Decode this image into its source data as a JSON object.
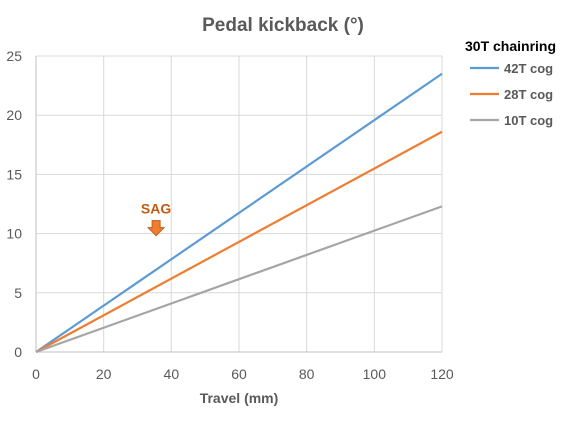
{
  "chart_data": {
    "type": "line",
    "title": "Pedal kickback  (°)",
    "xlabel": "Travel (mm)",
    "ylabel": "",
    "xlim": [
      0,
      120
    ],
    "ylim": [
      0,
      25
    ],
    "x_ticks": [
      "0",
      "20",
      "40",
      "60",
      "80",
      "100",
      "120"
    ],
    "y_ticks": [
      "0",
      "5",
      "10",
      "15",
      "20",
      "25"
    ],
    "grid": true,
    "legend_title": "30T chainring",
    "legend_position": "right",
    "series": [
      {
        "name": "42T cog",
        "color": "#5b9bd5",
        "x": [
          0,
          120
        ],
        "y": [
          0,
          23.5
        ]
      },
      {
        "name": "28T cog",
        "color": "#ed7d31",
        "x": [
          0,
          120
        ],
        "y": [
          0,
          18.6
        ]
      },
      {
        "name": "10T cog",
        "color": "#a5a5a5",
        "x": [
          0,
          120
        ],
        "y": [
          0,
          12.3
        ]
      }
    ],
    "annotations": [
      {
        "text": "SAG",
        "x": 35.5,
        "y": 10.5,
        "color": "#c55a11",
        "marker": "down-arrow"
      }
    ]
  }
}
